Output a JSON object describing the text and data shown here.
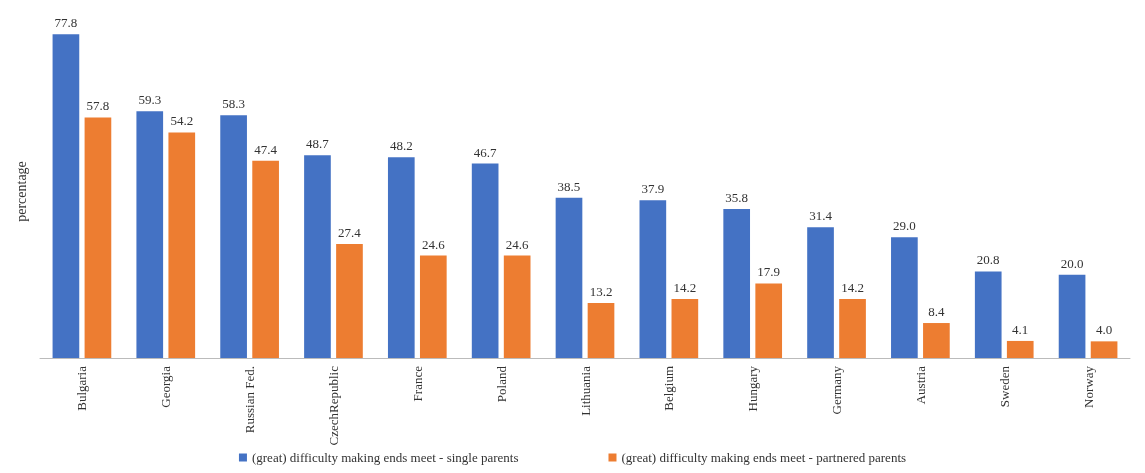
{
  "chart_data": {
    "type": "bar",
    "ylabel": "percentage",
    "categories": [
      "Bulgaria",
      "Georgia",
      "Russian Fed.",
      "CzechRepublic",
      "France",
      "Poland",
      "Lithuania",
      "Belgium",
      "Hungary",
      "Germany",
      "Austria",
      "Sweden",
      "Norway"
    ],
    "series": [
      {
        "name": "(great) difficulty making ends meet - single parents",
        "color": "#4472c4",
        "values": [
          77.8,
          59.3,
          58.3,
          48.7,
          48.2,
          46.7,
          38.5,
          37.9,
          35.8,
          31.4,
          29.0,
          20.8,
          20.0
        ],
        "value_labels": [
          "77.8",
          "59.3",
          "58.3",
          "48.7",
          "48.2",
          "46.7",
          "38.5",
          "37.9",
          "35.8",
          "31.4",
          "29.0",
          "20.8",
          "20.0"
        ]
      },
      {
        "name": "(great) difficulty making ends meet - partnered parents",
        "color": "#ed7d31",
        "values": [
          57.8,
          54.2,
          47.4,
          27.4,
          24.6,
          24.6,
          13.2,
          14.2,
          17.9,
          14.2,
          8.4,
          4.1,
          4.0
        ],
        "value_labels": [
          "57.8",
          "54.2",
          "47.4",
          "27.4",
          "24.6",
          "24.6",
          "13.2",
          "14.2",
          "17.9",
          "14.2",
          "8.4",
          "4.1",
          "4.0"
        ]
      }
    ],
    "grid": false,
    "legend": "bottom"
  }
}
